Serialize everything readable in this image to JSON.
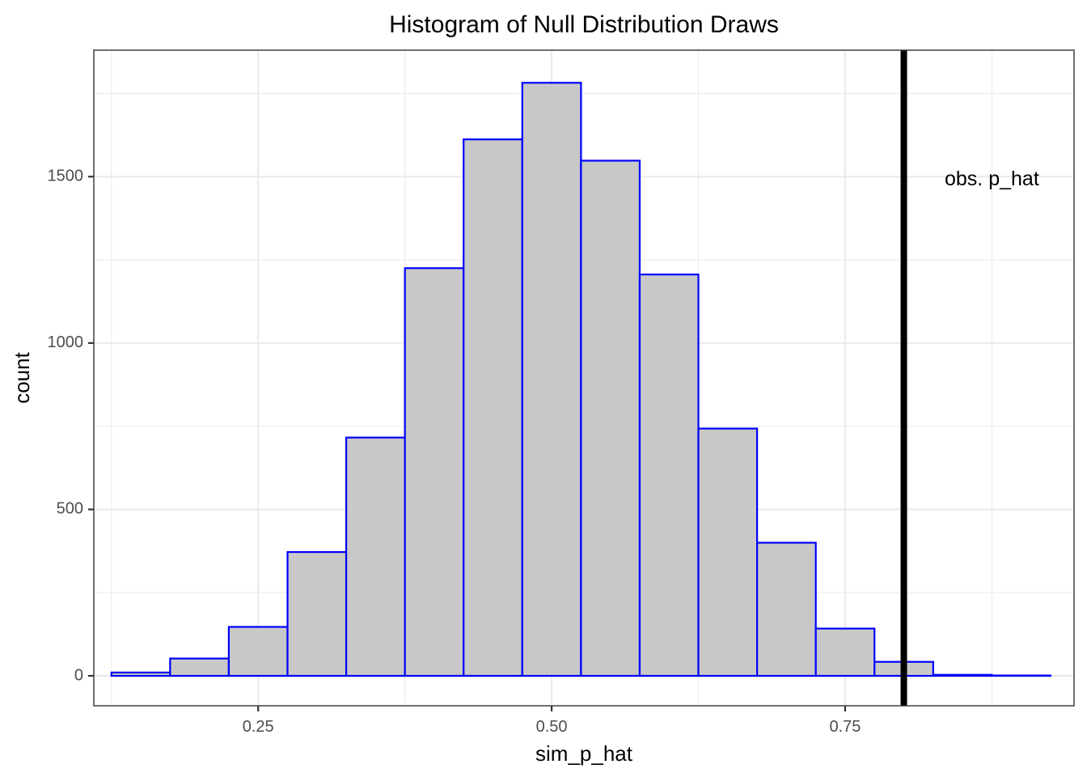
{
  "chart_data": {
    "type": "bar",
    "title": "Histogram of Null Distribution Draws",
    "xlabel": "sim_p_hat",
    "ylabel": "count",
    "xlim": [
      0.11,
      0.945
    ],
    "ylim": [
      -90,
      1880
    ],
    "x_ticks": [
      0.25,
      0.5,
      0.75
    ],
    "x_tick_labels": [
      "0.25",
      "0.50",
      "0.75"
    ],
    "y_ticks": [
      0,
      500,
      1000,
      1500
    ],
    "y_tick_labels": [
      "0",
      "500",
      "1000",
      "1500"
    ],
    "grid": true,
    "bin_width": 0.05,
    "bins": [
      {
        "x": 0.15,
        "count": 10
      },
      {
        "x": 0.2,
        "count": 52
      },
      {
        "x": 0.25,
        "count": 147
      },
      {
        "x": 0.3,
        "count": 372
      },
      {
        "x": 0.35,
        "count": 716
      },
      {
        "x": 0.4,
        "count": 1225
      },
      {
        "x": 0.45,
        "count": 1612
      },
      {
        "x": 0.5,
        "count": 1782
      },
      {
        "x": 0.55,
        "count": 1548
      },
      {
        "x": 0.6,
        "count": 1206
      },
      {
        "x": 0.65,
        "count": 743
      },
      {
        "x": 0.7,
        "count": 400
      },
      {
        "x": 0.75,
        "count": 142
      },
      {
        "x": 0.8,
        "count": 42
      },
      {
        "x": 0.85,
        "count": 3
      },
      {
        "x": 0.9,
        "count": 1
      }
    ],
    "reference_line": {
      "x": 0.8
    },
    "annotation": {
      "text": "obs. p_hat",
      "x": 0.875,
      "y": 1490
    },
    "colors": {
      "bar_fill": "#c8c8c8",
      "bar_outline": "#0000ff",
      "line": "#000000"
    }
  }
}
